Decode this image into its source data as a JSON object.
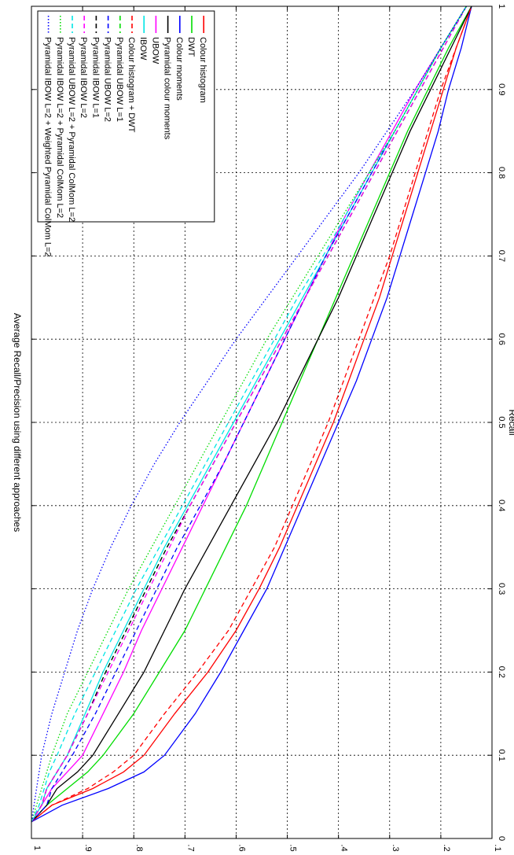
{
  "chart_data": {
    "type": "line",
    "title": "Average Recall/Precision using different approaches",
    "xlabel": "Recall",
    "ylabel": "",
    "xlim": [
      0,
      1
    ],
    "ylim": [
      0.1,
      1
    ],
    "x_ticks": [
      0,
      0.1,
      0.2,
      0.3,
      0.4,
      0.5,
      0.6,
      0.7,
      0.8,
      0.9,
      1
    ],
    "x_tick_labels": [
      "0",
      "0.1",
      "0.2",
      "0.3",
      "0.4",
      "0.5",
      "0.6",
      "0.7",
      "0.8",
      "0.9",
      "1"
    ],
    "y_ticks": [
      0.1,
      0.2,
      0.3,
      0.4,
      0.5,
      0.6,
      0.7,
      0.8,
      0.9,
      1
    ],
    "y_tick_labels": [
      ".1",
      ".2",
      ".3",
      ".4",
      ".5",
      ".6",
      ".7",
      ".8",
      ".9",
      "1"
    ],
    "grid": true,
    "legend_position": "top-left",
    "orientation": "rotated-90-clockwise",
    "series": [
      {
        "name": "Colour histogram",
        "color": "#ff0000",
        "dash": "solid",
        "x": [
          0.02,
          0.04,
          0.06,
          0.08,
          0.1,
          0.15,
          0.2,
          0.25,
          0.3,
          0.35,
          0.4,
          0.45,
          0.5,
          0.55,
          0.6,
          0.65,
          0.7,
          0.75,
          0.8,
          0.85,
          0.9,
          0.95,
          1.0
        ],
        "y": [
          1.0,
          0.96,
          0.88,
          0.82,
          0.78,
          0.72,
          0.655,
          0.6,
          0.555,
          0.515,
          0.48,
          0.445,
          0.41,
          0.38,
          0.35,
          0.32,
          0.295,
          0.27,
          0.245,
          0.22,
          0.195,
          0.17,
          0.14
        ]
      },
      {
        "name": "DWT",
        "color": "#00dd00",
        "dash": "solid",
        "x": [
          0.02,
          0.04,
          0.06,
          0.08,
          0.1,
          0.15,
          0.2,
          0.25,
          0.3,
          0.35,
          0.4,
          0.45,
          0.5,
          0.55,
          0.6,
          0.65,
          0.7,
          0.75,
          0.8,
          0.85,
          0.9,
          0.95,
          1.0
        ],
        "y": [
          1.0,
          0.97,
          0.93,
          0.89,
          0.86,
          0.8,
          0.75,
          0.7,
          0.66,
          0.62,
          0.58,
          0.545,
          0.51,
          0.475,
          0.44,
          0.405,
          0.37,
          0.335,
          0.3,
          0.265,
          0.225,
          0.185,
          0.14
        ]
      },
      {
        "name": "Colour moments",
        "color": "#0000ff",
        "dash": "solid",
        "x": [
          0.02,
          0.04,
          0.06,
          0.08,
          0.1,
          0.15,
          0.2,
          0.25,
          0.3,
          0.35,
          0.4,
          0.45,
          0.5,
          0.55,
          0.6,
          0.65,
          0.7,
          0.75,
          0.8,
          0.85,
          0.9,
          0.95,
          1.0
        ],
        "y": [
          1.0,
          0.94,
          0.85,
          0.78,
          0.74,
          0.68,
          0.63,
          0.585,
          0.54,
          0.505,
          0.47,
          0.435,
          0.4,
          0.365,
          0.335,
          0.305,
          0.28,
          0.255,
          0.23,
          0.205,
          0.185,
          0.16,
          0.14
        ]
      },
      {
        "name": "Pyramidal colour moments",
        "color": "#000000",
        "dash": "solid",
        "x": [
          0.02,
          0.04,
          0.06,
          0.08,
          0.1,
          0.15,
          0.2,
          0.25,
          0.3,
          0.35,
          0.4,
          0.45,
          0.5,
          0.55,
          0.6,
          0.65,
          0.7,
          0.75,
          0.8,
          0.85,
          0.9,
          0.95,
          1.0
        ],
        "y": [
          1.0,
          0.97,
          0.95,
          0.91,
          0.88,
          0.83,
          0.78,
          0.74,
          0.7,
          0.655,
          0.61,
          0.565,
          0.52,
          0.48,
          0.44,
          0.4,
          0.365,
          0.33,
          0.295,
          0.26,
          0.22,
          0.18,
          0.14
        ]
      },
      {
        "name": "UBOW",
        "color": "#ff00ff",
        "dash": "solid",
        "x": [
          0.02,
          0.04,
          0.06,
          0.08,
          0.1,
          0.15,
          0.2,
          0.25,
          0.3,
          0.35,
          0.4,
          0.45,
          0.5,
          0.55,
          0.6,
          0.65,
          0.7,
          0.75,
          0.8,
          0.85,
          0.9,
          0.95,
          1.0
        ],
        "y": [
          1.0,
          0.98,
          0.96,
          0.93,
          0.9,
          0.86,
          0.82,
          0.785,
          0.745,
          0.705,
          0.665,
          0.625,
          0.585,
          0.545,
          0.505,
          0.465,
          0.425,
          0.385,
          0.34,
          0.295,
          0.25,
          0.2,
          0.15
        ]
      },
      {
        "name": "IBOW",
        "color": "#00e5e5",
        "dash": "solid",
        "x": [
          0.02,
          0.04,
          0.06,
          0.08,
          0.1,
          0.15,
          0.2,
          0.25,
          0.3,
          0.35,
          0.4,
          0.45,
          0.5,
          0.55,
          0.6,
          0.65,
          0.7,
          0.75,
          0.8,
          0.85,
          0.9,
          0.95,
          1.0
        ],
        "y": [
          1.0,
          0.98,
          0.97,
          0.95,
          0.93,
          0.895,
          0.86,
          0.82,
          0.78,
          0.74,
          0.695,
          0.65,
          0.605,
          0.56,
          0.515,
          0.47,
          0.425,
          0.38,
          0.335,
          0.29,
          0.245,
          0.2,
          0.15
        ]
      },
      {
        "name": "Colour histogram + DWT",
        "color": "#ff0000",
        "dash": "dashed",
        "x": [
          0.02,
          0.04,
          0.06,
          0.08,
          0.1,
          0.15,
          0.2,
          0.25,
          0.3,
          0.35,
          0.4,
          0.45,
          0.5,
          0.55,
          0.6,
          0.65,
          0.7,
          0.75,
          0.8,
          0.85,
          0.9,
          0.95,
          1.0
        ],
        "y": [
          1.0,
          0.96,
          0.89,
          0.84,
          0.8,
          0.74,
          0.675,
          0.615,
          0.57,
          0.525,
          0.49,
          0.455,
          0.42,
          0.39,
          0.36,
          0.33,
          0.3,
          0.275,
          0.25,
          0.225,
          0.2,
          0.17,
          0.14
        ]
      },
      {
        "name": "Pyramidal UBOW L=1",
        "color": "#00dd00",
        "dash": "dashed",
        "x": [
          0.02,
          0.04,
          0.06,
          0.08,
          0.1,
          0.15,
          0.2,
          0.25,
          0.3,
          0.35,
          0.4,
          0.45,
          0.5,
          0.55,
          0.6,
          0.65,
          0.7,
          0.75,
          0.8,
          0.85,
          0.9,
          0.95,
          1.0
        ],
        "y": [
          1.0,
          0.98,
          0.97,
          0.95,
          0.93,
          0.89,
          0.855,
          0.815,
          0.775,
          0.735,
          0.69,
          0.645,
          0.6,
          0.555,
          0.51,
          0.465,
          0.42,
          0.375,
          0.33,
          0.285,
          0.24,
          0.195,
          0.15
        ]
      },
      {
        "name": "Pyramidal UBOW L=2",
        "color": "#0000ff",
        "dash": "dashed",
        "x": [
          0.02,
          0.04,
          0.06,
          0.08,
          0.1,
          0.15,
          0.2,
          0.25,
          0.3,
          0.35,
          0.4,
          0.45,
          0.5,
          0.55,
          0.6,
          0.65,
          0.7,
          0.75,
          0.8,
          0.85,
          0.9,
          0.95,
          1.0
        ],
        "y": [
          1.0,
          0.97,
          0.96,
          0.94,
          0.92,
          0.875,
          0.835,
          0.795,
          0.755,
          0.715,
          0.67,
          0.625,
          0.585,
          0.545,
          0.505,
          0.465,
          0.425,
          0.38,
          0.335,
          0.29,
          0.245,
          0.2,
          0.15
        ]
      },
      {
        "name": "Pyramidal IBOW L=1",
        "color": "#000000",
        "dash": "dashed",
        "x": [
          0.02,
          0.04,
          0.06,
          0.08,
          0.1,
          0.15,
          0.2,
          0.25,
          0.3,
          0.35,
          0.4,
          0.45,
          0.5,
          0.55,
          0.6,
          0.65,
          0.7,
          0.75,
          0.8,
          0.85,
          0.9,
          0.95,
          1.0
        ],
        "y": [
          1.0,
          0.98,
          0.97,
          0.95,
          0.93,
          0.89,
          0.855,
          0.815,
          0.775,
          0.735,
          0.69,
          0.645,
          0.6,
          0.555,
          0.51,
          0.465,
          0.42,
          0.375,
          0.33,
          0.285,
          0.24,
          0.195,
          0.15
        ]
      },
      {
        "name": "Pyramidal IBOW L=2",
        "color": "#ff00ff",
        "dash": "dashed",
        "x": [
          0.02,
          0.04,
          0.06,
          0.08,
          0.1,
          0.15,
          0.2,
          0.25,
          0.3,
          0.35,
          0.4,
          0.45,
          0.5,
          0.55,
          0.6,
          0.65,
          0.7,
          0.75,
          0.8,
          0.85,
          0.9,
          0.95,
          1.0
        ],
        "y": [
          1.0,
          0.98,
          0.97,
          0.95,
          0.93,
          0.89,
          0.85,
          0.81,
          0.77,
          0.73,
          0.69,
          0.645,
          0.6,
          0.555,
          0.51,
          0.465,
          0.42,
          0.375,
          0.33,
          0.285,
          0.24,
          0.195,
          0.15
        ]
      },
      {
        "name": "Pyramidal UBOW L=2 + Pyramidal ColMom L=2",
        "color": "#00e5e5",
        "dash": "dashed",
        "x": [
          0.02,
          0.04,
          0.06,
          0.08,
          0.1,
          0.15,
          0.2,
          0.25,
          0.3,
          0.35,
          0.4,
          0.45,
          0.5,
          0.55,
          0.6,
          0.65,
          0.7,
          0.75,
          0.8,
          0.85,
          0.9,
          0.95,
          1.0
        ],
        "y": [
          1.0,
          0.985,
          0.975,
          0.965,
          0.95,
          0.915,
          0.875,
          0.835,
          0.795,
          0.75,
          0.705,
          0.66,
          0.615,
          0.57,
          0.525,
          0.48,
          0.43,
          0.385,
          0.34,
          0.29,
          0.245,
          0.2,
          0.15
        ]
      },
      {
        "name": "Pyramidal IBOW L=2 + Pyramidal ColMom L=2",
        "color": "#00dd00",
        "dash": "dotted",
        "x": [
          0.02,
          0.04,
          0.06,
          0.08,
          0.1,
          0.15,
          0.2,
          0.25,
          0.3,
          0.35,
          0.4,
          0.45,
          0.5,
          0.55,
          0.6,
          0.65,
          0.7,
          0.75,
          0.8,
          0.85,
          0.9,
          0.95,
          1.0
        ],
        "y": [
          1.0,
          0.99,
          0.98,
          0.97,
          0.96,
          0.93,
          0.89,
          0.85,
          0.81,
          0.765,
          0.72,
          0.675,
          0.63,
          0.585,
          0.54,
          0.49,
          0.44,
          0.39,
          0.34,
          0.29,
          0.245,
          0.2,
          0.15
        ]
      },
      {
        "name": "Pyramidal IBOW L=2 + Weighted Pyramidal ColMom L=2",
        "color": "#0000ff",
        "dash": "dotted",
        "x": [
          0.02,
          0.04,
          0.06,
          0.08,
          0.1,
          0.15,
          0.2,
          0.25,
          0.3,
          0.35,
          0.4,
          0.45,
          0.5,
          0.55,
          0.6,
          0.65,
          0.7,
          0.75,
          0.8,
          0.85,
          0.9,
          0.95,
          1.0
        ],
        "y": [
          1.0,
          0.995,
          0.99,
          0.985,
          0.98,
          0.96,
          0.935,
          0.91,
          0.88,
          0.845,
          0.805,
          0.76,
          0.71,
          0.655,
          0.6,
          0.54,
          0.48,
          0.42,
          0.36,
          0.305,
          0.25,
          0.2,
          0.15
        ]
      }
    ]
  }
}
